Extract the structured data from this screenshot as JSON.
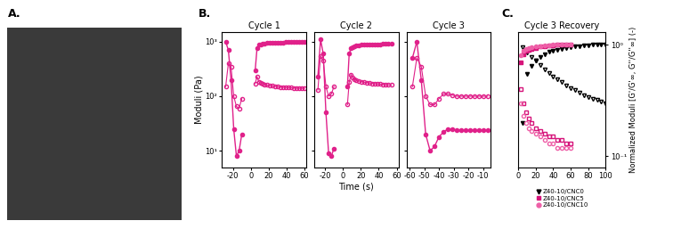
{
  "panel_labels": [
    "A.",
    "B.",
    "C."
  ],
  "chart_data": [
    {
      "type": "line",
      "title": "Cycle 1",
      "ylabel": "Moduli (Pa)",
      "log": "y",
      "color": "#e0218a",
      "marker": "o",
      "line_style": "solid",
      "xlim": [
        -32,
        62
      ],
      "xticks": [
        -20,
        0,
        20,
        40,
        60
      ],
      "ylim": [
        5,
        1500
      ],
      "yticks": [
        {
          "value": 10,
          "label": "10¹"
        },
        {
          "value": 100,
          "label": "10²"
        },
        {
          "value": 1000,
          "label": "10³"
        }
      ],
      "x": [
        -28,
        -25,
        -22,
        -19,
        -16,
        -13,
        -10,
        0,
        5,
        7,
        9,
        11,
        13,
        15,
        18,
        21,
        24,
        27,
        30,
        33,
        36,
        39,
        42,
        45,
        48,
        51,
        54,
        57,
        60
      ],
      "storage": [
        1000,
        700,
        200,
        25,
        8,
        10,
        20,
        null,
        300,
        750,
        880,
        900,
        920,
        930,
        940,
        945,
        950,
        955,
        960,
        965,
        970,
        975,
        980,
        985,
        990,
        995,
        1000,
        1000,
        1000
      ],
      "loss": [
        150,
        400,
        350,
        100,
        65,
        60,
        90,
        null,
        170,
        230,
        185,
        175,
        170,
        165,
        160,
        157,
        155,
        152,
        150,
        148,
        146,
        145,
        144,
        143,
        142,
        141,
        140,
        140,
        140
      ]
    },
    {
      "type": "line",
      "title": "Cycle 2",
      "xlabel": "Time (s)",
      "log": "y",
      "tick_labels": "x",
      "color": "#e0218a",
      "marker": "o",
      "line_style": "solid",
      "xlim": [
        -32,
        62
      ],
      "xticks": [
        -20,
        0,
        20,
        40,
        60
      ],
      "ylim": [
        5,
        1500
      ],
      "yticks": [
        {
          "value": 10,
          "label": "10¹"
        },
        {
          "value": 100,
          "label": "10²"
        },
        {
          "value": 1000,
          "label": "10³"
        }
      ],
      "x": [
        -28,
        -25,
        -22,
        -19,
        -16,
        -13,
        -10,
        0,
        5,
        7,
        9,
        11,
        13,
        15,
        18,
        21,
        24,
        27,
        30,
        33,
        36,
        39,
        42,
        45,
        48,
        51,
        54
      ],
      "storage": [
        230,
        1100,
        600,
        50,
        9,
        8,
        11,
        null,
        150,
        600,
        750,
        800,
        830,
        850,
        860,
        870,
        875,
        880,
        885,
        890,
        895,
        900,
        900,
        905,
        905,
        910,
        910
      ],
      "loss": [
        130,
        550,
        450,
        150,
        100,
        110,
        150,
        null,
        70,
        180,
        250,
        220,
        205,
        195,
        190,
        185,
        180,
        178,
        175,
        172,
        170,
        168,
        166,
        165,
        163,
        162,
        160
      ]
    },
    {
      "type": "line",
      "title": "Cycle 3",
      "log": "y",
      "tick_labels": "x",
      "color": "#e0218a",
      "marker": "o",
      "line_style": "solid",
      "xlim": [
        -62,
        -5
      ],
      "xticks": [
        -60,
        -50,
        -40,
        -30,
        -20,
        -10
      ],
      "ylim": [
        5,
        1500
      ],
      "yticks": [
        {
          "value": 10,
          "label": "10¹"
        },
        {
          "value": 100,
          "label": "10²"
        },
        {
          "value": 1000,
          "label": "10³"
        }
      ],
      "x": [
        -58,
        -55,
        -52,
        -49,
        -46,
        -43,
        -40,
        -37,
        -34,
        -31,
        -28,
        -25,
        -22,
        -19,
        -16,
        -13,
        -10,
        -7
      ],
      "storage": [
        500,
        1000,
        200,
        20,
        10,
        12,
        18,
        22,
        25,
        25,
        24,
        24,
        24,
        24,
        24,
        24,
        24,
        24
      ],
      "loss": [
        150,
        500,
        350,
        100,
        70,
        70,
        90,
        110,
        110,
        105,
        100,
        100,
        100,
        100,
        100,
        100,
        100,
        100
      ]
    },
    {
      "type": "scatter",
      "title": "Cycle 3 Recovery",
      "ylabel": "Normalized Moduli [G'/G'∞, G''/G''∞] (-)",
      "log": "y",
      "legend": "upper center",
      "line_style": "none",
      "xlim": [
        0,
        100
      ],
      "xticks": [
        0,
        20,
        40,
        60,
        80,
        100
      ],
      "ylim": [
        0.08,
        1.3
      ],
      "yticks": [
        {
          "value": 0.1,
          "label": "10⁻¹"
        },
        {
          "value": 1,
          "label": "10⁰"
        }
      ],
      "series": [
        {
          "name": "Z40-10/CNC0",
          "color": "#000000",
          "marker": "v",
          "x": [
            5,
            10,
            15,
            20,
            25,
            30,
            35,
            40,
            45,
            50,
            55,
            60,
            65,
            70,
            75,
            80,
            85,
            90,
            95,
            100
          ],
          "storage": [
            0.2,
            0.55,
            0.65,
            0.72,
            0.78,
            0.82,
            0.86,
            0.88,
            0.9,
            0.92,
            0.94,
            0.95,
            0.96,
            0.97,
            0.98,
            0.99,
            1.0,
            1.0,
            1.0,
            1.0
          ],
          "loss": [
            0.95,
            0.85,
            0.78,
            0.72,
            0.66,
            0.6,
            0.56,
            0.52,
            0.49,
            0.46,
            0.43,
            0.41,
            0.39,
            0.37,
            0.35,
            0.34,
            0.33,
            0.32,
            0.31,
            0.3
          ]
        },
        {
          "name": "Z40-10/CNC5",
          "color": "#d6147a",
          "marker": "s",
          "x": [
            3,
            6,
            9,
            12,
            15,
            20,
            25,
            30,
            35,
            40,
            45,
            50,
            55,
            60
          ],
          "storage": [
            0.7,
            0.82,
            0.88,
            0.9,
            0.92,
            0.94,
            0.96,
            0.97,
            0.98,
            0.99,
            1.0,
            1.0,
            1.0,
            1.0
          ],
          "loss": [
            0.4,
            0.3,
            0.25,
            0.22,
            0.2,
            0.18,
            0.17,
            0.16,
            0.15,
            0.15,
            0.14,
            0.14,
            0.13,
            0.13
          ]
        },
        {
          "name": "Z40-10/CNC10",
          "color": "#ee5fa7",
          "marker": "o",
          "x": [
            3,
            6,
            9,
            12,
            15,
            20,
            25,
            30,
            35,
            40,
            45,
            50,
            55,
            60
          ],
          "storage": [
            0.8,
            0.88,
            0.92,
            0.94,
            0.95,
            0.96,
            0.97,
            0.98,
            0.99,
            1.0,
            1.0,
            1.0,
            1.0,
            1.0
          ],
          "loss": [
            0.3,
            0.23,
            0.2,
            0.18,
            0.17,
            0.16,
            0.15,
            0.14,
            0.13,
            0.13,
            0.12,
            0.12,
            0.12,
            0.12
          ]
        }
      ]
    }
  ]
}
